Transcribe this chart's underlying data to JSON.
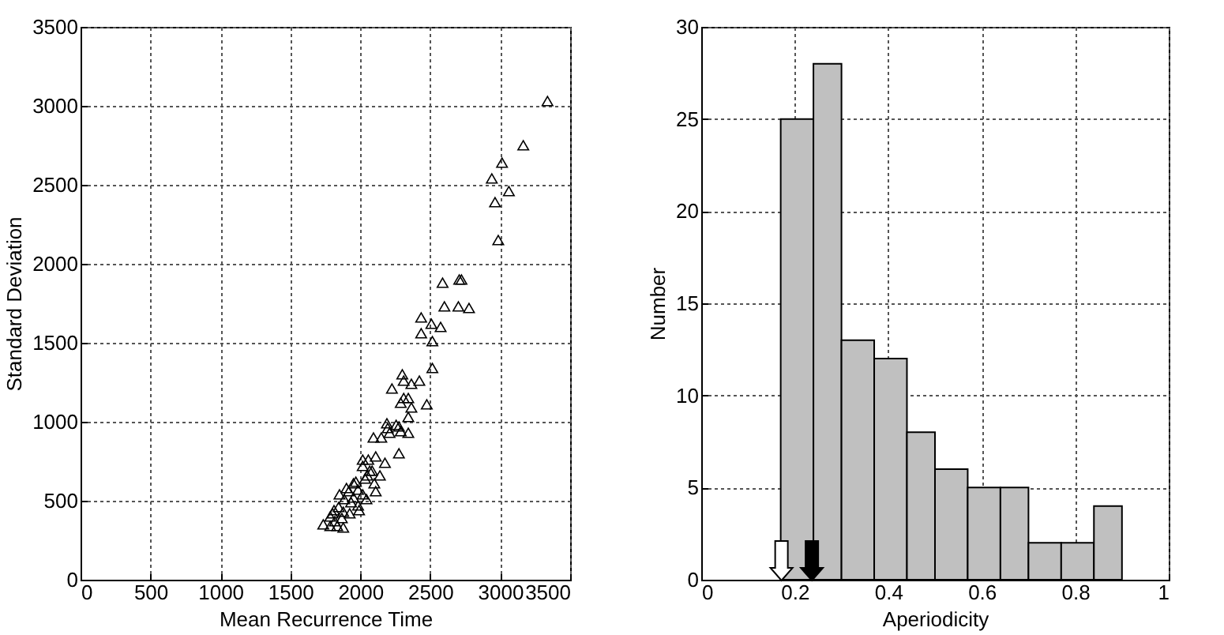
{
  "chart_data": [
    {
      "type": "scatter",
      "xlabel": "Mean Recurrence Time",
      "ylabel": "Standard Deviation",
      "marker": "triangle",
      "grid": true,
      "xlim": [
        0,
        3500
      ],
      "xticks": [
        0,
        500,
        1000,
        1500,
        2000,
        2500,
        3000,
        3500
      ],
      "ylim": [
        0,
        3500
      ],
      "yticks": [
        0,
        500,
        1000,
        1500,
        2000,
        2500,
        3000,
        3500
      ],
      "series": [
        {
          "color": "#000000",
          "x": [
            3338,
            3165,
            3013,
            2940,
            3062,
            2963,
            2986,
            2588,
            2707,
            2723,
            2601,
            2701,
            2777,
            2435,
            2508,
            2574,
            2435,
            2515,
            2515,
            2300,
            2226,
            2310,
            2365,
            2422,
            2475,
            2310,
            2343,
            2289,
            2365,
            2343,
            2343,
            2276,
            2094,
            2150,
            2190,
            2196,
            2256,
            2276,
            2209,
            2289,
            2017,
            2057,
            2110,
            2176,
            2067,
            2140,
            2034,
            2100,
            2110,
            2044,
            1984,
            1951,
            1918,
            1851,
            1885,
            1934,
            1984,
            1845,
            1812,
            1878,
            1924,
            1991,
            1785,
            1818,
            1868,
            1835,
            1735,
            1785,
            1878,
            1802,
            2017,
            2050,
            2084,
            1968,
            1901,
            2017,
            1951
          ],
          "values": [
            3030,
            2750,
            2640,
            2540,
            2460,
            2390,
            2150,
            1880,
            1900,
            1900,
            1730,
            1730,
            1720,
            1660,
            1620,
            1600,
            1560,
            1510,
            1340,
            1300,
            1210,
            1260,
            1240,
            1260,
            1110,
            1150,
            1150,
            1120,
            1090,
            1030,
            930,
            800,
            900,
            900,
            990,
            960,
            980,
            970,
            930,
            940,
            760,
            760,
            780,
            740,
            690,
            660,
            640,
            610,
            560,
            510,
            570,
            610,
            560,
            540,
            510,
            490,
            470,
            460,
            440,
            430,
            420,
            440,
            400,
            370,
            390,
            340,
            350,
            340,
            330,
            420,
            720,
            660,
            690,
            620,
            580,
            540,
            520
          ]
        }
      ]
    },
    {
      "type": "histogram",
      "xlabel": "Aperiodicity",
      "ylabel": "Number",
      "grid": true,
      "xlim": [
        0,
        1
      ],
      "xticks": [
        0,
        0.2,
        0.4,
        0.6,
        0.8,
        1
      ],
      "ylim": [
        0,
        30
      ],
      "yticks": [
        0,
        5,
        10,
        15,
        20,
        25,
        30
      ],
      "bins": [
        0.17,
        0.24,
        0.3,
        0.37,
        0.44,
        0.5,
        0.57,
        0.64,
        0.7,
        0.77,
        0.84,
        0.9
      ],
      "values": [
        25,
        28,
        13,
        12,
        8,
        6,
        5,
        5,
        2,
        2,
        4
      ],
      "color": "#c0c0c0"
    }
  ]
}
